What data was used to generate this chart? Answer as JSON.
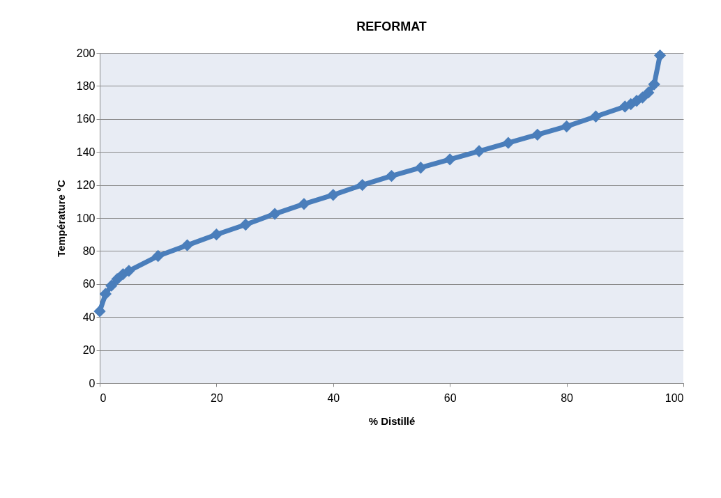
{
  "chart_data": {
    "type": "line",
    "title": "REFORMAT",
    "xlabel": "% Distillé",
    "ylabel": "Température °C",
    "x": [
      0,
      1,
      2,
      3,
      4,
      5,
      10,
      15,
      20,
      25,
      30,
      35,
      40,
      45,
      50,
      55,
      60,
      65,
      70,
      75,
      80,
      85,
      90,
      91,
      92,
      93,
      94,
      95,
      96
    ],
    "series": [
      {
        "color": "#4a7ebb",
        "values": [
          43.5,
          54,
          59,
          63,
          66,
          68,
          77,
          83.5,
          90,
          96,
          102.5,
          108.5,
          114,
          120,
          125.5,
          130.5,
          135.5,
          140.5,
          145.5,
          150.5,
          155.5,
          161.5,
          167.5,
          169,
          171,
          173,
          176,
          181,
          198.5
        ]
      }
    ],
    "xlim": [
      0,
      100
    ],
    "xticks": [
      0,
      20,
      40,
      60,
      80,
      100
    ],
    "ylim": [
      0,
      200
    ],
    "yticks": [
      0,
      20,
      40,
      60,
      80,
      100,
      120,
      140,
      160,
      180,
      200
    ],
    "grid": "y",
    "legend": false,
    "marker": "diamond",
    "line_style": "solid"
  }
}
